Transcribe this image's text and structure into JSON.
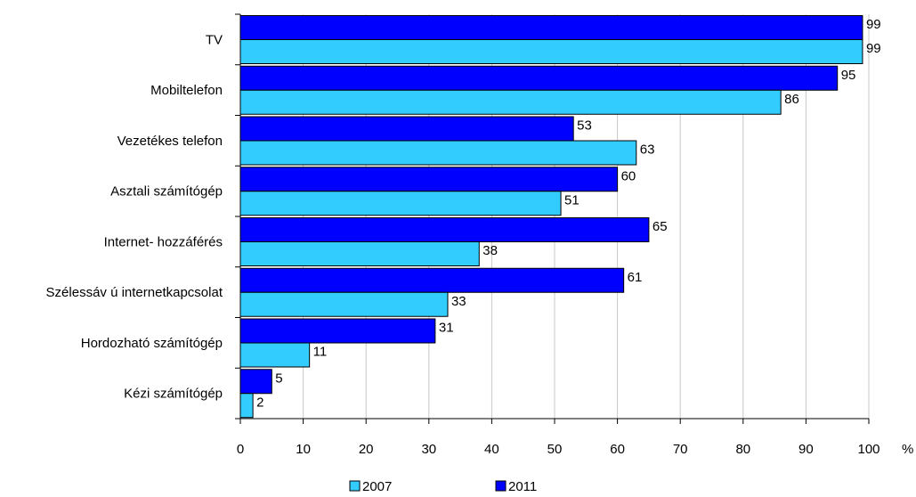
{
  "chart_data": {
    "type": "bar",
    "orientation": "horizontal",
    "categories": [
      "TV",
      "Mobiltelefon",
      "Vezetékes telefon",
      "Asztali számítógép",
      "Internet-  hozzáférés",
      "Szélessáv ú internetkapcsolat",
      "Hordozható számítógép",
      "Kézi számítógép"
    ],
    "series": [
      {
        "name": "2011",
        "color": "#0000FF",
        "values": [
          99,
          95,
          53,
          60,
          65,
          61,
          31,
          5
        ]
      },
      {
        "name": "2007",
        "color": "#33CCFF",
        "values": [
          99,
          86,
          63,
          51,
          38,
          33,
          11,
          2
        ]
      }
    ],
    "xlim": [
      0,
      100
    ],
    "xticks": [
      "0",
      "10",
      "20",
      "30",
      "40",
      "50",
      "60",
      "70",
      "80",
      "90",
      "100"
    ],
    "xunit": "%",
    "grid": true,
    "legend": {
      "placement": "bottom",
      "items": [
        {
          "label": "2007",
          "color": "#33CCFF"
        },
        {
          "label": "2011",
          "color": "#0000FF"
        }
      ]
    }
  }
}
